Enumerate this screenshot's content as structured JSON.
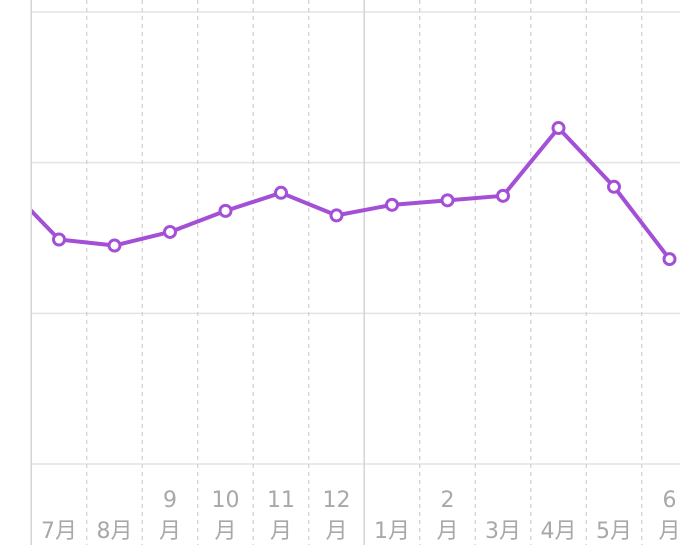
{
  "chart_data": {
    "type": "line",
    "categories": [
      null,
      [
        "7月"
      ],
      [
        "8月"
      ],
      [
        "9",
        "月"
      ],
      [
        "10",
        "月"
      ],
      [
        "11",
        "月"
      ],
      [
        "12",
        "月"
      ],
      [
        "1月"
      ],
      [
        "2",
        "月"
      ],
      [
        "3月"
      ],
      [
        "4月"
      ],
      [
        "5月"
      ],
      [
        "6",
        "月"
      ]
    ],
    "series": [
      {
        "color": "#a34fd6",
        "values": [
          1.87,
          1.49,
          1.45,
          1.54,
          1.68,
          1.8,
          1.65,
          1.72,
          1.75,
          1.78,
          2.23,
          1.84,
          1.36
        ]
      }
    ],
    "ylim": [
      0,
      3
    ],
    "grid_lines": [
      0,
      1,
      2,
      3
    ],
    "grid": true
  }
}
